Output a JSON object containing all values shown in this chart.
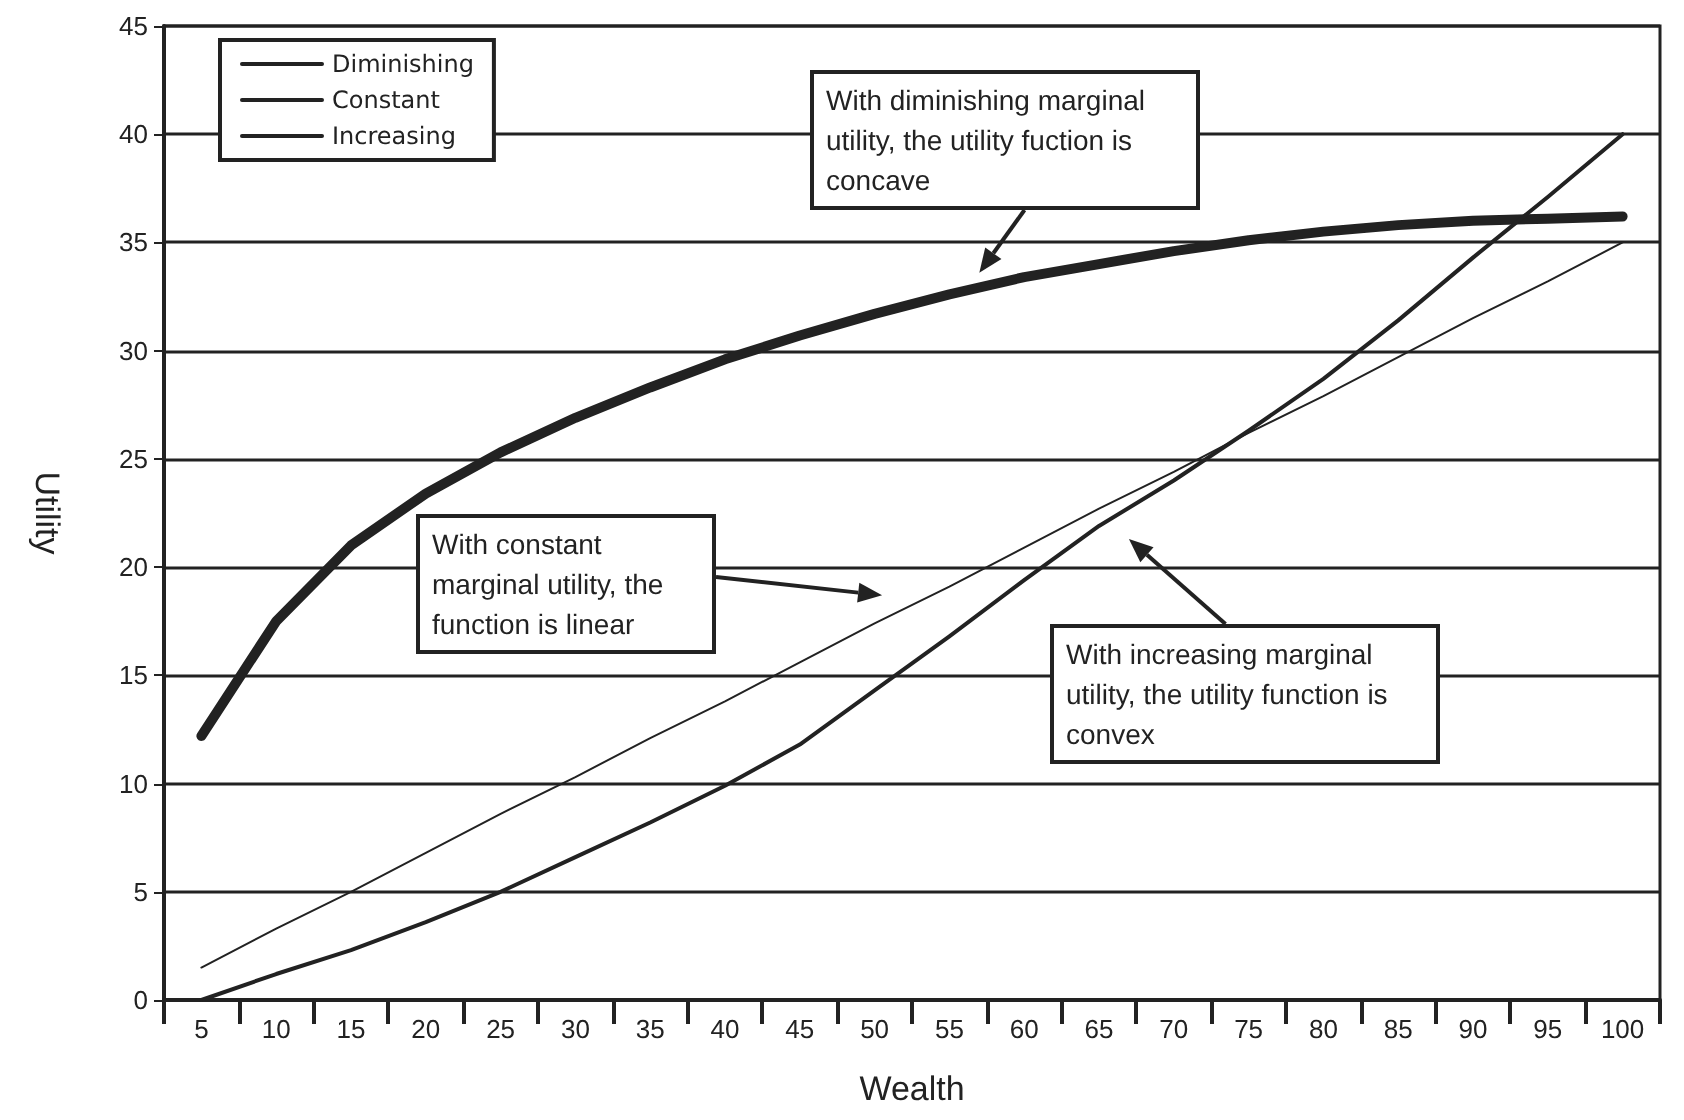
{
  "chart_data": {
    "type": "line",
    "xlabel": "Wealth",
    "ylabel": "Utility",
    "categories": [
      "5",
      "10",
      "15",
      "20",
      "25",
      "30",
      "35",
      "40",
      "45",
      "50",
      "55",
      "60",
      "65",
      "70",
      "75",
      "80",
      "85",
      "90",
      "95",
      "100"
    ],
    "series": [
      {
        "name": "Diminishing",
        "color": "#222222",
        "values": [
          12.2,
          17.5,
          21,
          23.4,
          25.3,
          26.9,
          28.3,
          29.6,
          30.7,
          31.7,
          32.6,
          33.4,
          34.0,
          34.6,
          35.1,
          35.5,
          35.8,
          36.0,
          36.1,
          36.2
        ]
      },
      {
        "name": "Constant",
        "color": "#222222",
        "values": [
          1.5,
          3.3,
          5.0,
          6.8,
          8.6,
          10.3,
          12.1,
          13.8,
          15.6,
          17.4,
          19.1,
          20.9,
          22.7,
          24.4,
          26.2,
          27.9,
          29.7,
          31.5,
          33.2,
          35.0
        ]
      },
      {
        "name": "Increasing",
        "color": "#222222",
        "values": [
          0,
          1.2,
          2.3,
          3.6,
          5.0,
          6.6,
          8.2,
          9.9,
          11.8,
          14.3,
          16.8,
          19.4,
          21.9,
          24.0,
          26.3,
          28.7,
          31.4,
          34.3,
          37.1,
          40.0
        ]
      }
    ],
    "ylim": [
      0,
      45
    ],
    "yticks": [
      0,
      5,
      10,
      15,
      20,
      25,
      30,
      35,
      40,
      45
    ],
    "grid": "y",
    "legend": "top left",
    "marker": "none",
    "line_style": "solid",
    "annotations": [
      "With diminishing marginal utility, the utility fuction is concave",
      "With constant marginal utility, the function is linear",
      "With increasing marginal utility, the utility function is convex"
    ]
  }
}
